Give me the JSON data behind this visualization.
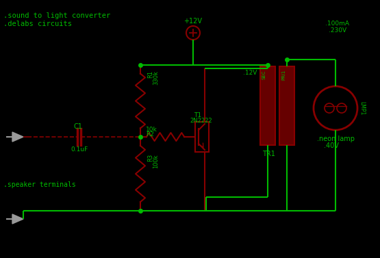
{
  "bg_color": "#000000",
  "wire_color": "#00bb00",
  "component_color": "#880000",
  "text_color_green": "#00bb00",
  "title_line1": ".sound to light converter",
  "title_line2": ".delabs circuits",
  "vcc": "+12V",
  "c1_label": "C1",
  "c1_val": "0.1uF",
  "r1_label": "R1",
  "r1_val": "330k",
  "r2_label": "R2",
  "r2_val": "10k",
  "r3_label": "R3",
  "r3_val": "100k",
  "t1_label": "T1",
  "t1_val": "2N2222",
  "tr1_label": "TR1",
  "lamp_label": ".neon lamp",
  "lamp_val": ".40V",
  "sec_label": "SEC",
  "pri_label": "PRI1",
  "v12": ".12V",
  "v100ma": ".100mA",
  "v230": ".230V",
  "lamp1": "LMP1",
  "speaker": ".speaker terminals",
  "fig_width": 5.55,
  "fig_height": 3.77,
  "dpi": 100
}
